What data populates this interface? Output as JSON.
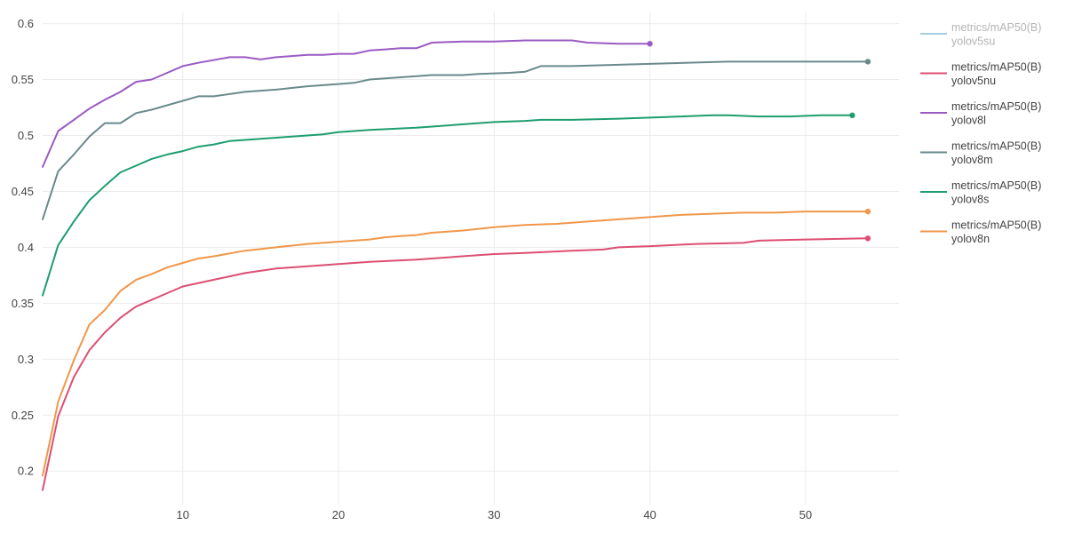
{
  "chart_data": {
    "type": "line",
    "title": "",
    "xlabel": "",
    "ylabel": "",
    "xlim": [
      1,
      56
    ],
    "ylim": [
      0.17,
      0.61
    ],
    "x_ticks": [
      10,
      20,
      30,
      40,
      50
    ],
    "y_ticks": [
      0.2,
      0.25,
      0.3,
      0.35,
      0.4,
      0.45,
      0.5,
      0.55,
      0.6
    ],
    "x_tick_labels": [
      "10",
      "20",
      "30",
      "40",
      "50"
    ],
    "y_tick_labels": [
      "0.2",
      "0.25",
      "0.3",
      "0.35",
      "0.4",
      "0.45",
      "0.5",
      "0.55",
      "0.6"
    ],
    "grid": true,
    "legend_position": "right",
    "series": [
      {
        "name": "metrics/mAP50(B)",
        "subname": "yolov5su",
        "color": "#a6cee3",
        "dimmed": true,
        "x": [],
        "y": []
      },
      {
        "name": "metrics/mAP50(B)",
        "subname": "yolov5nu",
        "color": "#dc4f72",
        "dimmed": false,
        "x": [
          1,
          2,
          3,
          4,
          5,
          6,
          7,
          8,
          9,
          10,
          12,
          14,
          16,
          18,
          20,
          22,
          25,
          27,
          30,
          32,
          35,
          37,
          38,
          40,
          43,
          46,
          47,
          50,
          54
        ],
        "y": [
          0.183,
          0.249,
          0.284,
          0.308,
          0.324,
          0.337,
          0.347,
          0.353,
          0.359,
          0.365,
          0.371,
          0.377,
          0.381,
          0.383,
          0.385,
          0.387,
          0.389,
          0.391,
          0.394,
          0.395,
          0.397,
          0.398,
          0.4,
          0.401,
          0.403,
          0.404,
          0.406,
          0.407,
          0.408
        ]
      },
      {
        "name": "metrics/mAP50(B)",
        "subname": "yolov8l",
        "color": "#9a5bc3",
        "dimmed": false,
        "x": [
          1,
          2,
          3,
          4,
          5,
          6,
          7,
          8,
          9,
          10,
          11,
          13,
          14,
          15,
          16,
          17,
          18,
          19,
          20,
          21,
          22,
          23,
          24,
          25,
          26,
          28,
          29,
          30,
          32,
          34,
          35,
          36,
          38,
          40
        ],
        "y": [
          0.472,
          0.504,
          0.514,
          0.524,
          0.532,
          0.539,
          0.548,
          0.55,
          0.556,
          0.562,
          0.565,
          0.57,
          0.57,
          0.568,
          0.57,
          0.571,
          0.572,
          0.572,
          0.573,
          0.573,
          0.576,
          0.577,
          0.578,
          0.578,
          0.583,
          0.584,
          0.584,
          0.584,
          0.585,
          0.585,
          0.585,
          0.583,
          0.582,
          0.582
        ]
      },
      {
        "name": "metrics/mAP50(B)",
        "subname": "yolov8m",
        "color": "#6a8a8c",
        "dimmed": false,
        "x": [
          1,
          2,
          3,
          4,
          5,
          6,
          7,
          8,
          9,
          10,
          11,
          12,
          14,
          16,
          18,
          20,
          21,
          22,
          25,
          26,
          28,
          29,
          31,
          32,
          33,
          35,
          40,
          45,
          50,
          54
        ],
        "y": [
          0.425,
          0.468,
          0.483,
          0.499,
          0.511,
          0.511,
          0.52,
          0.523,
          0.527,
          0.531,
          0.535,
          0.535,
          0.539,
          0.541,
          0.544,
          0.546,
          0.547,
          0.55,
          0.553,
          0.554,
          0.554,
          0.555,
          0.556,
          0.557,
          0.562,
          0.562,
          0.564,
          0.566,
          0.566,
          0.566
        ]
      },
      {
        "name": "metrics/mAP50(B)",
        "subname": "yolov8s",
        "color": "#1e9e6e",
        "dimmed": false,
        "x": [
          1,
          2,
          3,
          4,
          5,
          6,
          7,
          8,
          9,
          10,
          11,
          12,
          13,
          15,
          17,
          19,
          20,
          21,
          22,
          25,
          27,
          30,
          32,
          33,
          35,
          38,
          40,
          42,
          44,
          45,
          47,
          49,
          51,
          52,
          53
        ],
        "y": [
          0.357,
          0.402,
          0.423,
          0.442,
          0.455,
          0.467,
          0.473,
          0.479,
          0.483,
          0.486,
          0.49,
          0.492,
          0.495,
          0.497,
          0.499,
          0.501,
          0.503,
          0.504,
          0.505,
          0.507,
          0.509,
          0.512,
          0.513,
          0.514,
          0.514,
          0.515,
          0.516,
          0.517,
          0.518,
          0.518,
          0.517,
          0.517,
          0.518,
          0.518,
          0.518
        ]
      },
      {
        "name": "metrics/mAP50(B)",
        "subname": "yolov8n",
        "color": "#f0974a",
        "dimmed": false,
        "x": [
          1,
          2,
          3,
          4,
          5,
          6,
          7,
          8,
          9,
          10,
          11,
          12,
          14,
          16,
          18,
          20,
          22,
          23,
          24,
          25,
          26,
          27,
          28,
          30,
          32,
          34,
          36,
          38,
          40,
          42,
          44,
          46,
          48,
          50,
          52,
          53,
          54
        ],
        "y": [
          0.196,
          0.262,
          0.299,
          0.331,
          0.344,
          0.361,
          0.371,
          0.376,
          0.382,
          0.386,
          0.39,
          0.392,
          0.397,
          0.4,
          0.403,
          0.405,
          0.407,
          0.409,
          0.41,
          0.411,
          0.413,
          0.414,
          0.415,
          0.418,
          0.42,
          0.421,
          0.423,
          0.425,
          0.427,
          0.429,
          0.43,
          0.431,
          0.431,
          0.432,
          0.432,
          0.432,
          0.432
        ]
      }
    ]
  }
}
